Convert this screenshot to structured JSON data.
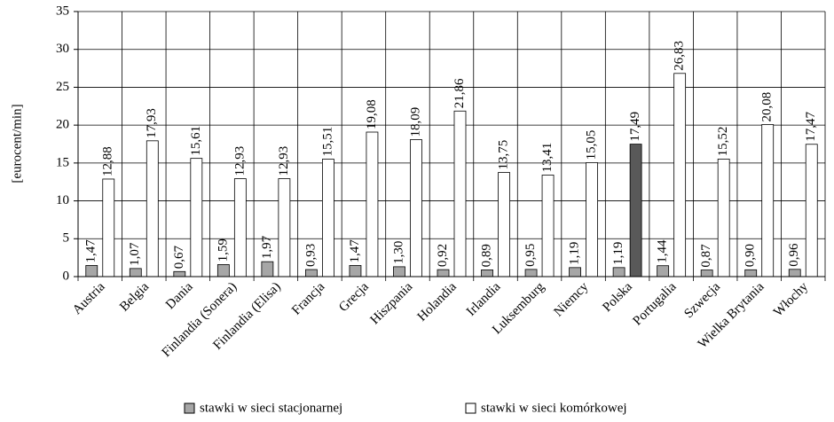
{
  "chart_data": {
    "type": "bar",
    "y_label": "[eurocent/min]",
    "categories": [
      "Austria",
      "Belgia",
      "Dania",
      "Finlandia (Sonera)",
      "Finlandia (Elisa)",
      "Francja",
      "Grecja",
      "Hiszpania",
      "Holandia",
      "Irlandia",
      "Luksemburg",
      "Niemcy",
      "Polska",
      "Portugalia",
      "Szwecja",
      "Wielka Brytania",
      "Włochy"
    ],
    "series": [
      {
        "name": "stawki w sieci stacjonarnej",
        "color": "#a6a6a6",
        "values": [
          1.47,
          1.07,
          0.67,
          1.59,
          1.97,
          0.93,
          1.47,
          1.3,
          0.92,
          0.89,
          0.95,
          1.19,
          1.19,
          1.44,
          0.87,
          0.9,
          0.96
        ],
        "value_labels": [
          "1,47",
          "1,07",
          "0,67",
          "1,59",
          "1,97",
          "0,93",
          "1,47",
          "1,30",
          "0,92",
          "0,89",
          "0,95",
          "1,19",
          "1,19",
          "1,44",
          "0,87",
          "0,90",
          "0,96"
        ]
      },
      {
        "name": "stawki w sieci komórkowej",
        "color": "#ffffff",
        "colors": [
          "#ffffff",
          "#ffffff",
          "#ffffff",
          "#ffffff",
          "#ffffff",
          "#ffffff",
          "#ffffff",
          "#ffffff",
          "#ffffff",
          "#ffffff",
          "#ffffff",
          "#ffffff",
          "#595959",
          "#ffffff",
          "#ffffff",
          "#ffffff",
          "#ffffff"
        ],
        "values": [
          12.88,
          17.93,
          15.61,
          12.93,
          12.93,
          15.51,
          19.08,
          18.09,
          21.86,
          13.75,
          13.41,
          15.05,
          17.49,
          26.83,
          15.52,
          20.08,
          17.47
        ],
        "value_labels": [
          "12,88",
          "17,93",
          "15,61",
          "12,93",
          "12,93",
          "15,51",
          "19,08",
          "18,09",
          "21,86",
          "13,75",
          "13,41",
          "15,05",
          "17,49",
          "26,83",
          "15,52",
          "20,08",
          "17,47"
        ]
      }
    ],
    "ylim": [
      0,
      35
    ],
    "yticks": [
      0,
      5,
      10,
      15,
      20,
      25,
      30,
      35
    ],
    "grid": true
  }
}
